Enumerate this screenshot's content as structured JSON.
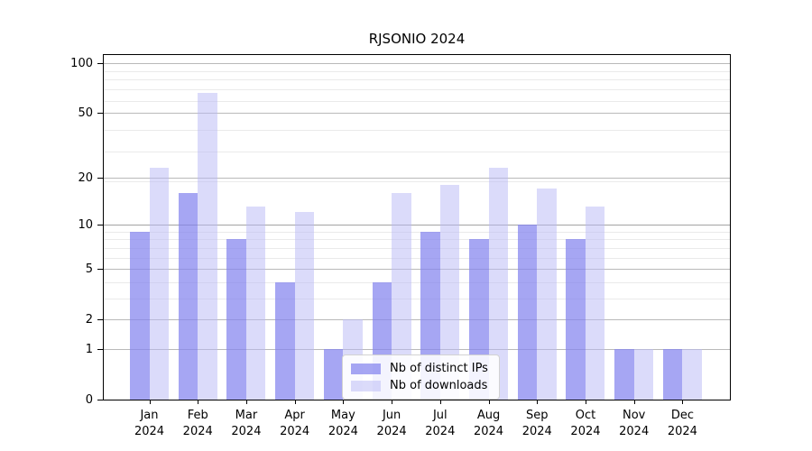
{
  "title": "RJSONIO 2024",
  "chart_data": {
    "type": "bar",
    "title": "RJSONIO 2024",
    "categories": [
      "Jan 2024",
      "Feb 2024",
      "Mar 2024",
      "Apr 2024",
      "May 2024",
      "Jun 2024",
      "Jul 2024",
      "Aug 2024",
      "Sep 2024",
      "Oct 2024",
      "Nov 2024",
      "Dec 2024"
    ],
    "series": [
      {
        "name": "Nb of distinct IPs",
        "values": [
          9,
          16,
          8,
          4,
          1,
          4,
          9,
          8,
          10,
          8,
          1,
          1
        ],
        "color": "rgba(132,132,239,0.72)",
        "color_hex": "#a6a6f0"
      },
      {
        "name": "Nb of downloads",
        "values": [
          23,
          66,
          13,
          12,
          2,
          16,
          18,
          23,
          17,
          13,
          1,
          1
        ],
        "color": "rgba(186,186,246,0.52)",
        "color_hex": "#dcdcf9"
      }
    ],
    "xlabel": "",
    "ylabel": "",
    "y_axis": {
      "scale": "log10(1+x)",
      "ticks": [
        0,
        1,
        2,
        5,
        10,
        20,
        50,
        100
      ],
      "minor_gridlines": [
        3,
        4,
        6,
        7,
        8,
        9,
        19,
        29,
        39,
        59,
        69,
        79,
        89
      ],
      "ylim": [
        0,
        110
      ]
    },
    "grid": "horizontal",
    "legend_position": "inside lower-center"
  },
  "legend": {
    "items": [
      {
        "label": "Nb of distinct IPs"
      },
      {
        "label": "Nb of downloads"
      }
    ]
  }
}
